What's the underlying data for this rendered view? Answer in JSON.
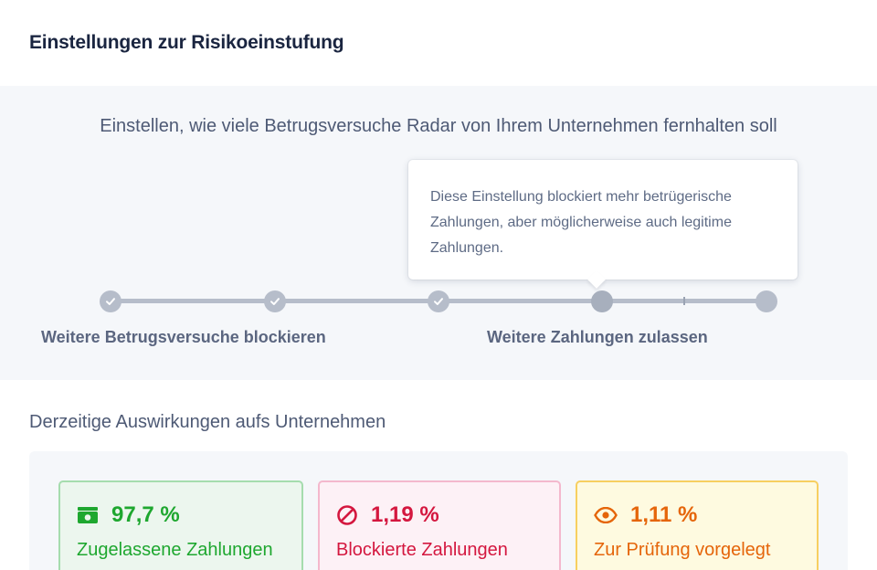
{
  "header": {
    "title": "Einstellungen zur Risikoeinstufung"
  },
  "risk": {
    "heading": "Einstellen, wie viele Betrugsversuche Radar von Ihrem Unternehmen fernhalten soll",
    "tooltip": "Diese Einstellung blockiert mehr betrügerische Zahlungen, aber möglicherweise auch legitime Zahlungen.",
    "slider": {
      "steps": 5,
      "selected_step": 4,
      "left_label": "Weitere Betrugsversuche blockieren",
      "right_label": "Weitere Zahlungen zulassen"
    }
  },
  "impact": {
    "title": "Derzeitige Auswirkungen aufs Unternehmen",
    "cards": [
      {
        "icon": "cash-icon",
        "value": "97,7 %",
        "label": "Zugelassene Zahlungen",
        "color": "#1ea72f"
      },
      {
        "icon": "blocked-icon",
        "value": "1,19 %",
        "label": "Blockierte Zahlungen",
        "color": "#d4173f"
      },
      {
        "icon": "eye-icon",
        "value": "1,11 %",
        "label": "Zur Prüfung vorgelegt",
        "color": "#e5650a"
      }
    ]
  }
}
